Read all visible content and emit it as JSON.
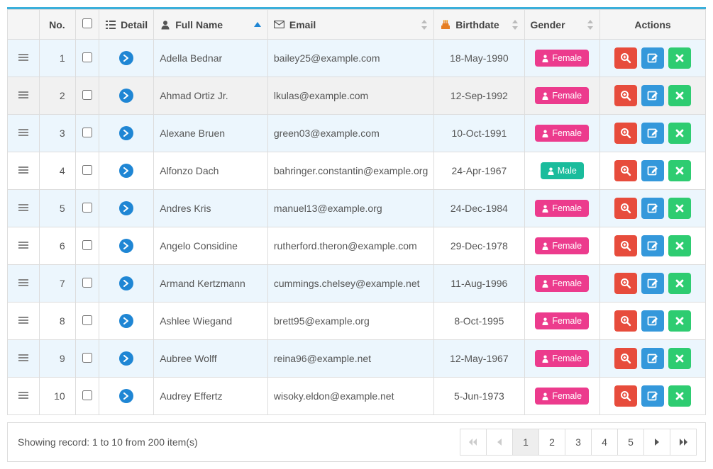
{
  "colors": {
    "accent": "#3bafda",
    "header_bg": "#f5f5f5",
    "row_odd": "#ecf6fd",
    "row_even": "#ffffff",
    "row_hover": "#f1f1f1",
    "badge_female": "#ec3b8d",
    "badge_male": "#1abc9c",
    "btn_view": "#e74c3c",
    "btn_edit": "#3498db",
    "btn_delete": "#2ecc71",
    "sort_active": "#1f86d4"
  },
  "headers": {
    "no": "No.",
    "detail": "Detail",
    "fullname": "Full Name",
    "email": "Email",
    "birthdate": "Birthdate",
    "gender": "Gender",
    "actions": "Actions"
  },
  "genders": {
    "female": "Female",
    "male": "Male"
  },
  "rows": [
    {
      "no": "1",
      "name": "Adella Bednar",
      "email": "bailey25@example.com",
      "birth": "18-May-1990",
      "gender": "female"
    },
    {
      "no": "2",
      "name": "Ahmad Ortiz Jr.",
      "email": "lkulas@example.com",
      "birth": "12-Sep-1992",
      "gender": "female"
    },
    {
      "no": "3",
      "name": "Alexane Bruen",
      "email": "green03@example.com",
      "birth": "10-Oct-1991",
      "gender": "female"
    },
    {
      "no": "4",
      "name": "Alfonzo Dach",
      "email": "bahringer.constantin@example.org",
      "birth": "24-Apr-1967",
      "gender": "male"
    },
    {
      "no": "5",
      "name": "Andres Kris",
      "email": "manuel13@example.org",
      "birth": "24-Dec-1984",
      "gender": "female"
    },
    {
      "no": "6",
      "name": "Angelo Considine",
      "email": "rutherford.theron@example.com",
      "birth": "29-Dec-1978",
      "gender": "female"
    },
    {
      "no": "7",
      "name": "Armand Kertzmann",
      "email": "cummings.chelsey@example.net",
      "birth": "11-Aug-1996",
      "gender": "female"
    },
    {
      "no": "8",
      "name": "Ashlee Wiegand",
      "email": "brett95@example.org",
      "birth": "8-Oct-1995",
      "gender": "female"
    },
    {
      "no": "9",
      "name": "Aubree Wolff",
      "email": "reina96@example.net",
      "birth": "12-May-1967",
      "gender": "female"
    },
    {
      "no": "10",
      "name": "Audrey Effertz",
      "email": "wisoky.eldon@example.net",
      "birth": "5-Jun-1973",
      "gender": "female"
    }
  ],
  "sort": {
    "column": "fullname",
    "dir": "asc"
  },
  "hover_row_index": 1,
  "footer": {
    "summary": "Showing record: 1 to 10 from 200 item(s)",
    "pages": [
      "1",
      "2",
      "3",
      "4",
      "5"
    ],
    "current": "1"
  }
}
